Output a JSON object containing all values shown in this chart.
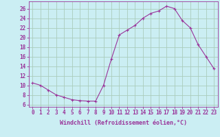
{
  "x": [
    0,
    1,
    2,
    3,
    4,
    5,
    6,
    7,
    8,
    9,
    10,
    11,
    12,
    13,
    14,
    15,
    16,
    17,
    18,
    19,
    20,
    21,
    22,
    23
  ],
  "y": [
    10.5,
    10.0,
    9.0,
    8.0,
    7.5,
    7.0,
    6.8,
    6.7,
    6.7,
    10.0,
    15.5,
    20.5,
    21.5,
    22.5,
    24.0,
    25.0,
    25.5,
    26.5,
    26.0,
    23.5,
    22.0,
    18.5,
    16.0,
    13.5
  ],
  "line_color": "#993399",
  "marker": "+",
  "marker_size": 3,
  "marker_lw": 0.8,
  "bg_color": "#cbeef3",
  "grid_color": "#aaccbb",
  "xlabel": "Windchill (Refroidissement éolien,°C)",
  "xlabel_fontsize": 6.0,
  "ylabel_ticks": [
    6,
    8,
    10,
    12,
    14,
    16,
    18,
    20,
    22,
    24,
    26
  ],
  "xlim": [
    -0.5,
    23.5
  ],
  "ylim": [
    5.5,
    27.5
  ],
  "tick_fontsize": 5.5,
  "label_color": "#993399",
  "line_width": 0.8
}
